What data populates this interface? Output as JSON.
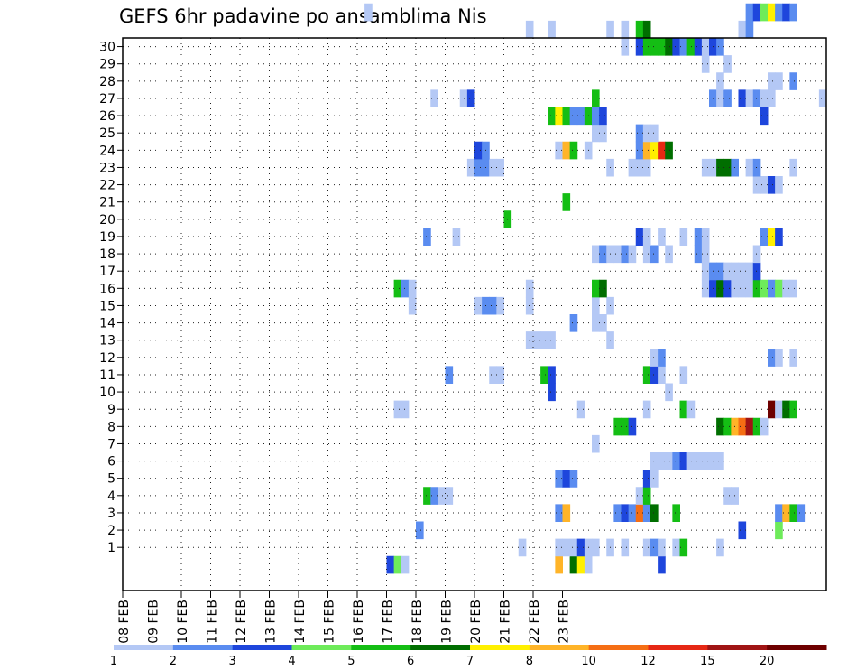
{
  "chart_data": {
    "type": "heatmap",
    "title": "GEFS 6hr padavine po ansamblima Nis",
    "xlabel": "",
    "ylabel": "",
    "x_ticks": [
      "08 FEB",
      "09 FEB",
      "10 FEB",
      "11 FEB",
      "12 FEB",
      "13 FEB",
      "14 FEB",
      "15 FEB",
      "16 FEB",
      "17 FEB",
      "18 FEB",
      "19 FEB",
      "20 FEB",
      "21 FEB",
      "22 FEB",
      "23 FEB"
    ],
    "x_start": "08 FEB 00Z",
    "x_step_hours": 6,
    "y_ticks": [
      "1",
      "2",
      "3",
      "4",
      "5",
      "6",
      "7",
      "8",
      "9",
      "10",
      "11",
      "12",
      "13",
      "14",
      "15",
      "16",
      "17",
      "18",
      "19",
      "20",
      "21",
      "22",
      "23",
      "24",
      "25",
      "26",
      "27",
      "28",
      "29",
      "30"
    ],
    "y_range": [
      0,
      30
    ],
    "grid": true,
    "legend": {
      "placement": "bottom",
      "labels": [
        "1",
        "2",
        "3",
        "4",
        "5",
        "6",
        "7",
        "8",
        "10",
        "12",
        "15",
        "20"
      ],
      "colors": [
        "#b4c8f5",
        "#5a8cf0",
        "#1e46dc",
        "#6eeb5a",
        "#14be14",
        "#006e00",
        "#fff000",
        "#ffb428",
        "#f56e14",
        "#e62814",
        "#a01414",
        "#6e0000"
      ]
    },
    "series": [
      {
        "member": 0,
        "cells": [
          [
            36,
            3
          ],
          [
            37,
            4
          ],
          [
            38,
            1
          ],
          [
            59,
            9
          ],
          [
            61,
            6
          ],
          [
            62,
            7
          ],
          [
            63,
            1
          ],
          [
            73,
            3
          ]
        ]
      },
      {
        "member": 1,
        "cells": [
          [
            54,
            1
          ],
          [
            59,
            1
          ],
          [
            60,
            1
          ],
          [
            61,
            1
          ],
          [
            62,
            3
          ],
          [
            63,
            1
          ],
          [
            64,
            1
          ],
          [
            66,
            1
          ],
          [
            68,
            1
          ],
          [
            71,
            1
          ],
          [
            72,
            2
          ],
          [
            73,
            1
          ],
          [
            75,
            1
          ],
          [
            76,
            5
          ],
          [
            81,
            1
          ]
        ]
      },
      {
        "member": 2,
        "cells": [
          [
            40,
            2
          ],
          [
            84,
            3
          ],
          [
            89,
            4
          ]
        ]
      },
      {
        "member": 3,
        "cells": [
          [
            59,
            2
          ],
          [
            60,
            8
          ],
          [
            67,
            2
          ],
          [
            68,
            3
          ],
          [
            69,
            2
          ],
          [
            70,
            10
          ],
          [
            71,
            2
          ],
          [
            72,
            6
          ],
          [
            75,
            5
          ],
          [
            89,
            2
          ],
          [
            90,
            8
          ],
          [
            91,
            5
          ],
          [
            92,
            2
          ]
        ]
      },
      {
        "member": 4,
        "cells": [
          [
            41,
            5
          ],
          [
            42,
            2
          ],
          [
            43,
            1
          ],
          [
            44,
            1
          ],
          [
            70,
            1
          ],
          [
            71,
            5
          ],
          [
            82,
            1
          ],
          [
            83,
            1
          ]
        ]
      },
      {
        "member": 5,
        "cells": [
          [
            59,
            2
          ],
          [
            60,
            3
          ],
          [
            61,
            2
          ],
          [
            71,
            3
          ],
          [
            72,
            1
          ]
        ]
      },
      {
        "member": 6,
        "cells": [
          [
            72,
            1
          ],
          [
            73,
            1
          ],
          [
            74,
            1
          ],
          [
            75,
            2
          ],
          [
            76,
            3
          ],
          [
            77,
            1
          ],
          [
            78,
            1
          ],
          [
            79,
            1
          ],
          [
            80,
            1
          ],
          [
            81,
            1
          ]
        ]
      },
      {
        "member": 7,
        "cells": [
          [
            64,
            1
          ]
        ]
      },
      {
        "member": 8,
        "cells": [
          [
            67,
            5
          ],
          [
            68,
            5
          ],
          [
            69,
            3
          ],
          [
            81,
            6
          ],
          [
            82,
            5
          ],
          [
            83,
            8
          ],
          [
            84,
            10
          ],
          [
            85,
            15
          ],
          [
            86,
            5
          ],
          [
            87,
            1
          ]
        ]
      },
      {
        "member": 9,
        "cells": [
          [
            37,
            1
          ],
          [
            38,
            1
          ],
          [
            62,
            1
          ],
          [
            71,
            1
          ],
          [
            76,
            5
          ],
          [
            77,
            1
          ],
          [
            88,
            20
          ],
          [
            89,
            1
          ],
          [
            90,
            6
          ],
          [
            91,
            5
          ]
        ]
      },
      {
        "member": 10,
        "cells": [
          [
            58,
            3
          ],
          [
            74,
            1
          ]
        ]
      },
      {
        "member": 11,
        "cells": [
          [
            44,
            2
          ],
          [
            50,
            1
          ],
          [
            51,
            1
          ],
          [
            57,
            5
          ],
          [
            58,
            3
          ],
          [
            71,
            5
          ],
          [
            72,
            3
          ],
          [
            73,
            1
          ],
          [
            76,
            1
          ]
        ]
      },
      {
        "member": 12,
        "cells": [
          [
            72,
            1
          ],
          [
            73,
            2
          ],
          [
            88,
            2
          ],
          [
            89,
            1
          ],
          [
            91,
            1
          ]
        ]
      },
      {
        "member": 13,
        "cells": [
          [
            55,
            1
          ],
          [
            56,
            1
          ],
          [
            57,
            1
          ],
          [
            58,
            1
          ],
          [
            66,
            1
          ]
        ]
      },
      {
        "member": 14,
        "cells": [
          [
            61,
            2
          ],
          [
            64,
            1
          ],
          [
            65,
            1
          ]
        ]
      },
      {
        "member": 15,
        "cells": [
          [
            39,
            1
          ],
          [
            48,
            1
          ],
          [
            49,
            2
          ],
          [
            50,
            2
          ],
          [
            51,
            1
          ],
          [
            55,
            1
          ],
          [
            64,
            1
          ],
          [
            66,
            1
          ]
        ]
      },
      {
        "member": 16,
        "cells": [
          [
            37,
            5
          ],
          [
            38,
            2
          ],
          [
            39,
            1
          ],
          [
            55,
            1
          ],
          [
            64,
            5
          ],
          [
            65,
            6
          ],
          [
            79,
            1
          ],
          [
            80,
            3
          ],
          [
            81,
            6
          ],
          [
            82,
            3
          ],
          [
            83,
            1
          ],
          [
            84,
            1
          ],
          [
            85,
            1
          ],
          [
            86,
            5
          ],
          [
            87,
            4
          ],
          [
            88,
            2
          ],
          [
            89,
            4
          ],
          [
            90,
            1
          ],
          [
            91,
            1
          ]
        ]
      },
      {
        "member": 17,
        "cells": [
          [
            79,
            1
          ],
          [
            80,
            2
          ],
          [
            81,
            2
          ],
          [
            82,
            1
          ],
          [
            83,
            1
          ],
          [
            84,
            1
          ],
          [
            85,
            1
          ],
          [
            86,
            3
          ]
        ]
      },
      {
        "member": 18,
        "cells": [
          [
            64,
            1
          ],
          [
            65,
            2
          ],
          [
            66,
            1
          ],
          [
            67,
            1
          ],
          [
            68,
            2
          ],
          [
            69,
            1
          ],
          [
            71,
            1
          ],
          [
            72,
            2
          ],
          [
            74,
            1
          ],
          [
            78,
            2
          ],
          [
            79,
            1
          ],
          [
            86,
            1
          ]
        ]
      },
      {
        "member": 19,
        "cells": [
          [
            41,
            2
          ],
          [
            45,
            1
          ],
          [
            70,
            3
          ],
          [
            71,
            1
          ],
          [
            73,
            1
          ],
          [
            76,
            1
          ],
          [
            78,
            2
          ],
          [
            79,
            1
          ],
          [
            87,
            2
          ],
          [
            88,
            7
          ],
          [
            89,
            3
          ]
        ]
      },
      {
        "member": 20,
        "cells": [
          [
            52,
            5
          ]
        ]
      },
      {
        "member": 21,
        "cells": [
          [
            60,
            5
          ]
        ]
      },
      {
        "member": 22,
        "cells": [
          [
            86,
            1
          ],
          [
            87,
            1
          ],
          [
            88,
            3
          ],
          [
            89,
            1
          ]
        ]
      },
      {
        "member": 23,
        "cells": [
          [
            47,
            1
          ],
          [
            48,
            2
          ],
          [
            49,
            2
          ],
          [
            50,
            1
          ],
          [
            51,
            1
          ],
          [
            66,
            1
          ],
          [
            69,
            1
          ],
          [
            70,
            1
          ],
          [
            71,
            1
          ],
          [
            79,
            1
          ],
          [
            80,
            1
          ],
          [
            81,
            6
          ],
          [
            82,
            6
          ],
          [
            83,
            2
          ],
          [
            85,
            1
          ],
          [
            86,
            2
          ],
          [
            91,
            1
          ]
        ]
      },
      {
        "member": 24,
        "cells": [
          [
            48,
            3
          ],
          [
            49,
            2
          ],
          [
            59,
            1
          ],
          [
            60,
            8
          ],
          [
            61,
            5
          ],
          [
            63,
            1
          ],
          [
            70,
            2
          ],
          [
            71,
            8
          ],
          [
            72,
            7
          ],
          [
            73,
            12
          ],
          [
            74,
            6
          ]
        ]
      },
      {
        "member": 25,
        "cells": [
          [
            64,
            1
          ],
          [
            65,
            1
          ],
          [
            70,
            2
          ],
          [
            71,
            1
          ],
          [
            72,
            1
          ]
        ]
      },
      {
        "member": 26,
        "cells": [
          [
            58,
            5
          ],
          [
            59,
            7
          ],
          [
            60,
            5
          ],
          [
            61,
            2
          ],
          [
            62,
            2
          ],
          [
            63,
            5
          ],
          [
            64,
            2
          ],
          [
            65,
            3
          ],
          [
            87,
            3
          ]
        ]
      },
      {
        "member": 27,
        "cells": [
          [
            42,
            1
          ],
          [
            46,
            1
          ],
          [
            47,
            3
          ],
          [
            64,
            5
          ],
          [
            80,
            2
          ],
          [
            81,
            1
          ],
          [
            82,
            2
          ],
          [
            84,
            3
          ],
          [
            85,
            1
          ],
          [
            86,
            2
          ],
          [
            87,
            1
          ],
          [
            88,
            1
          ],
          [
            95,
            1
          ]
        ]
      },
      {
        "member": 28,
        "cells": [
          [
            81,
            1
          ],
          [
            88,
            1
          ],
          [
            89,
            1
          ],
          [
            91,
            2
          ]
        ]
      },
      {
        "member": 29,
        "cells": [
          [
            79,
            1
          ],
          [
            82,
            1
          ]
        ]
      },
      {
        "member": 30,
        "cells": [
          [
            68,
            1
          ],
          [
            70,
            3
          ],
          [
            71,
            5
          ],
          [
            72,
            5
          ],
          [
            73,
            5
          ],
          [
            74,
            6
          ],
          [
            75,
            3
          ],
          [
            76,
            2
          ],
          [
            77,
            5
          ],
          [
            78,
            3
          ],
          [
            79,
            1
          ],
          [
            80,
            3
          ],
          [
            81,
            2
          ]
        ]
      },
      {
        "member": 31,
        "cells": [
          [
            55,
            1
          ],
          [
            58,
            1
          ],
          [
            66,
            1
          ],
          [
            68,
            1
          ],
          [
            70,
            5
          ],
          [
            71,
            6
          ],
          [
            84,
            1
          ],
          [
            85,
            2
          ]
        ]
      },
      {
        "member": 32,
        "cells": [
          [
            33,
            1
          ],
          [
            85,
            2
          ],
          [
            86,
            3
          ],
          [
            87,
            4
          ],
          [
            88,
            7
          ],
          [
            89,
            2
          ],
          [
            90,
            3
          ],
          [
            91,
            2
          ]
        ]
      }
    ]
  }
}
